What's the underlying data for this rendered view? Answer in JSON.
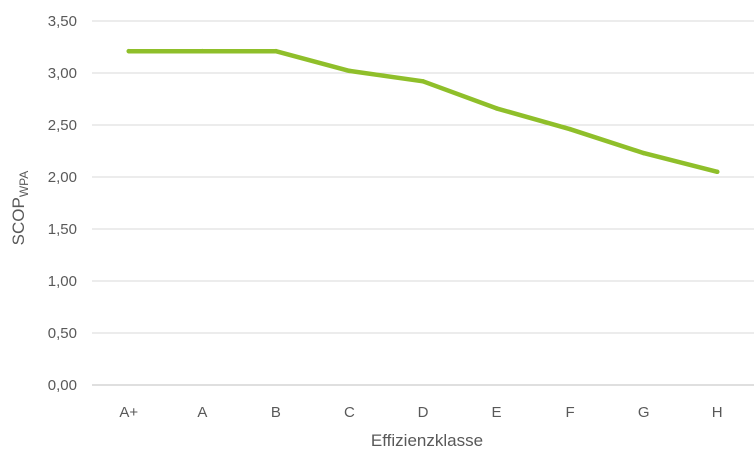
{
  "chart_data": {
    "type": "line",
    "title": "",
    "xlabel": "Effizienzklasse",
    "ylabel_main": "SCOP",
    "ylabel_sub": "WPA",
    "categories": [
      "A+",
      "A",
      "B",
      "C",
      "D",
      "E",
      "F",
      "G",
      "H"
    ],
    "series": [
      {
        "values": [
          3.21,
          3.21,
          3.21,
          3.02,
          2.92,
          2.66,
          2.46,
          2.23,
          2.05
        ]
      }
    ],
    "ylim": [
      0,
      3.5
    ],
    "y_ticks": [
      "0,00",
      "0,50",
      "1,00",
      "1,50",
      "2,00",
      "2,50",
      "3,00",
      "3,50"
    ],
    "y_tick_values": [
      0,
      0.5,
      1,
      1.5,
      2,
      2.5,
      3,
      3.5
    ],
    "grid": true,
    "line_color": "#8fbf2a"
  }
}
